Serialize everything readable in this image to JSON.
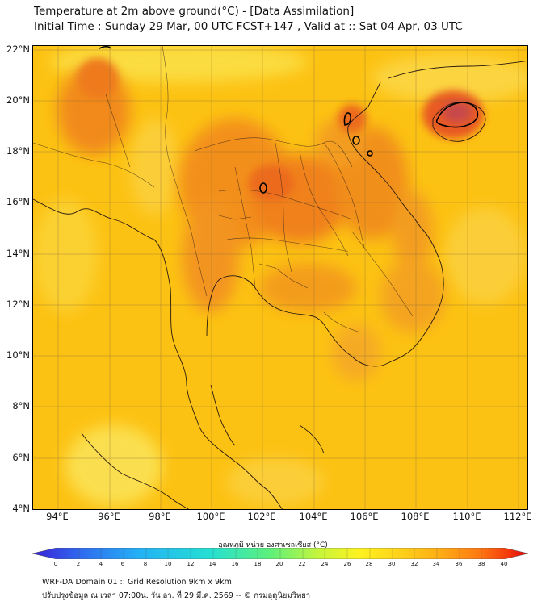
{
  "header": {
    "title_line1": "Temperature at 2m above ground(°C) - [Data Assimilation]",
    "title_line2": "Initial Time : Sunday 29 Mar, 00 UTC FCST+147 , Valid at :: Sat 04 Apr, 03 UTC"
  },
  "axes": {
    "lat_labels": [
      "22°N",
      "20°N",
      "18°N",
      "16°N",
      "14°N",
      "12°N",
      "10°N",
      "8°N",
      "6°N",
      "4°N"
    ],
    "lon_labels": [
      "94°E",
      "96°E",
      "98°E",
      "100°E",
      "102°E",
      "104°E",
      "106°E",
      "108°E",
      "110°E",
      "112°E"
    ],
    "lat_range": [
      4,
      22.3
    ],
    "lon_range": [
      93,
      112.4
    ]
  },
  "colorbar": {
    "label": "อุณหภูมิ หน่วย องศาเซลเซียส (°C)",
    "ticks": [
      "0",
      "2",
      "4",
      "6",
      "8",
      "10",
      "12",
      "14",
      "16",
      "18",
      "20",
      "22",
      "24",
      "26",
      "28",
      "30",
      "32",
      "34",
      "36",
      "38",
      "40"
    ],
    "range": [
      0,
      40
    ],
    "colors": [
      "#3a1fd6",
      "#2f6cf0",
      "#23b3f5",
      "#25e0d2",
      "#5ef07a",
      "#c8f53a",
      "#fff21f",
      "#ffd21a",
      "#ffae14",
      "#ff7a12",
      "#f43a0c",
      "#e0000a"
    ]
  },
  "map": {
    "background_color": "#fcc213",
    "hot_color": "#f0751a",
    "hottest_color": "#c8484a",
    "contour_color": "#000000"
  },
  "footer": {
    "line1": "WRF-DA Domain 01 :: Grid Resolution 9km x 9km",
    "line2": "ปรับปรุงข้อมูล ณ เวลา 07:00น. วัน อา. ที่ 29 มี.ค. 2569 -- © กรมอุตุนิยมวิทยา"
  }
}
